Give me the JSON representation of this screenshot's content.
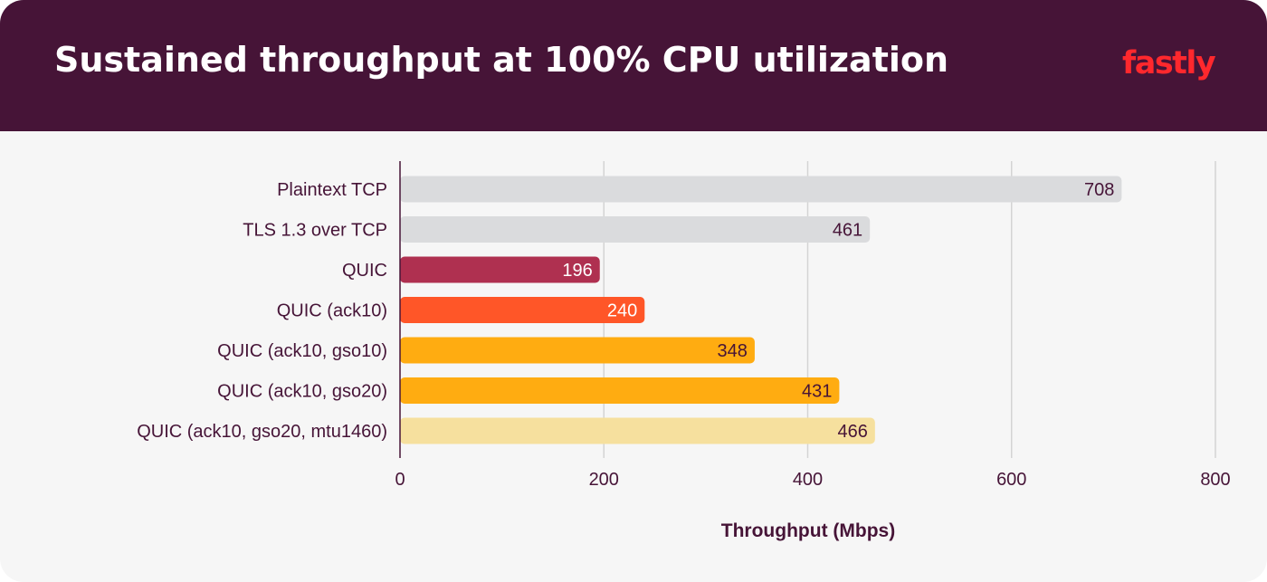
{
  "header": {
    "title": "Sustained throughput at 100% CPU utilization",
    "logo_text": "fastly"
  },
  "colors": {
    "header_bg": "#461437",
    "panel_bg": "#f6f6f6",
    "logo": "#ff282d",
    "text_dark": "#461437"
  },
  "chart_data": {
    "type": "bar",
    "orientation": "horizontal",
    "categories": [
      "Plaintext TCP",
      "TLS 1.3 over TCP",
      "QUIC",
      "QUIC (ack10)",
      "QUIC (ack10, gso10)",
      "QUIC (ack10, gso20)",
      "QUIC (ack10, gso20, mtu1460)"
    ],
    "values": [
      708,
      461,
      196,
      240,
      348,
      431,
      466
    ],
    "bar_colors": [
      "#dadbdd",
      "#dadbdd",
      "#af3050",
      "#ff5628",
      "#ffac11",
      "#ffac11",
      "#f6e09e"
    ],
    "label_colors": [
      "#461437",
      "#461437",
      "#ffffff",
      "#ffffff",
      "#461437",
      "#461437",
      "#461437"
    ],
    "xlabel": "Throughput (Mbps)",
    "ylabel": "",
    "xlim": [
      0,
      800
    ],
    "xticks": [
      0,
      200,
      400,
      600,
      800
    ],
    "grid": true
  }
}
